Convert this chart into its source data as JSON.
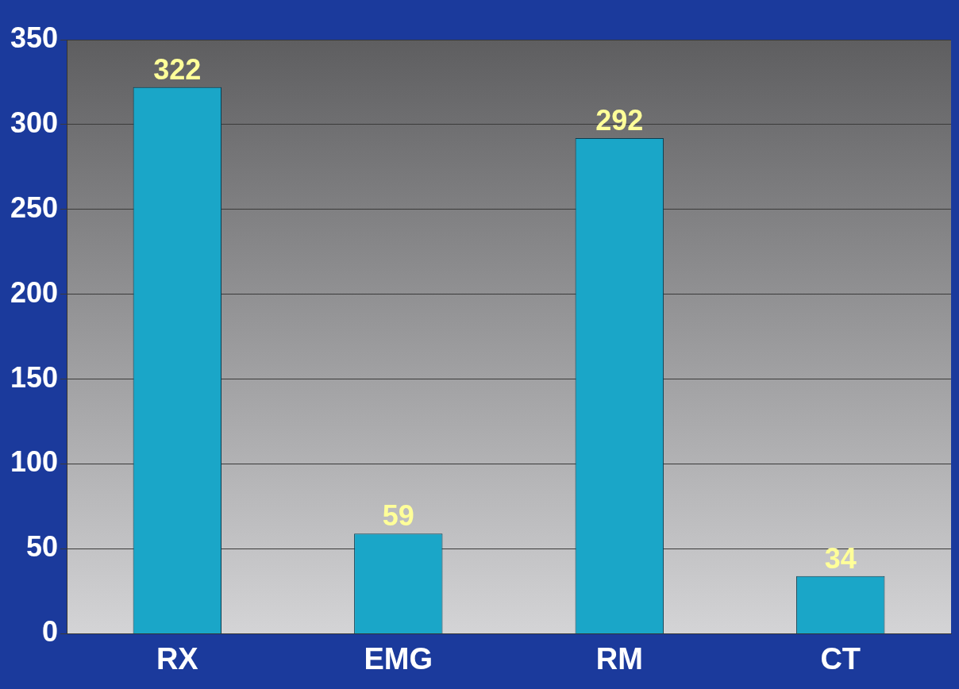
{
  "chart_data": {
    "type": "bar",
    "categories": [
      "RX",
      "EMG",
      "RM",
      "CT"
    ],
    "values": [
      322,
      59,
      292,
      34
    ],
    "color": "#1aa6c8",
    "ylim": [
      0,
      350
    ],
    "yticks": [
      0,
      50,
      100,
      150,
      200,
      250,
      300,
      350
    ],
    "grid": "y",
    "data_labels": true,
    "legend": false
  }
}
